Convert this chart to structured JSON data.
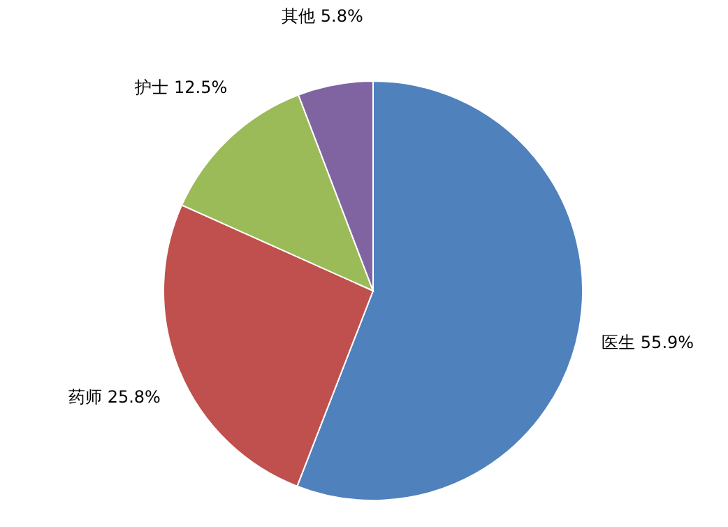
{
  "chart_data": {
    "type": "pie",
    "categories": [
      "医生",
      "药师",
      "护士",
      "其他"
    ],
    "values": [
      55.9,
      25.8,
      12.5,
      5.8
    ],
    "value_labels": [
      "55.9%",
      "25.8%",
      "12.5%",
      "5.8%"
    ],
    "colors": [
      "#4f81bd",
      "#c0504d",
      "#9bbb59",
      "#8064a2"
    ]
  }
}
